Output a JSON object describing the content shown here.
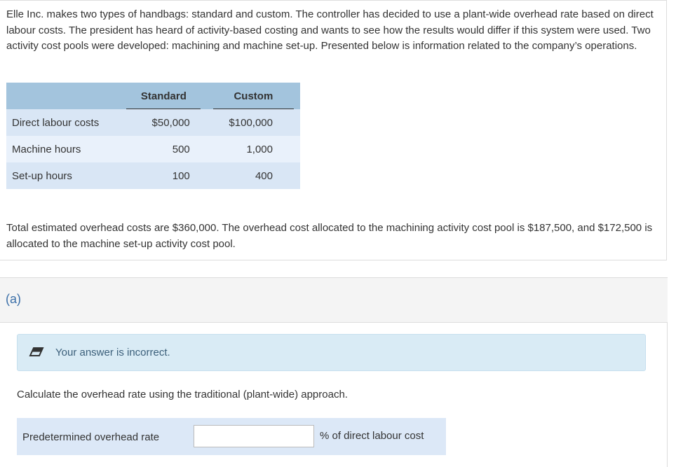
{
  "problem": {
    "intro": "Elle Inc. makes two types of handbags: standard and custom. The controller has decided to use a plant-wide overhead rate based on direct labour costs. The president has heard of activity-based costing and wants to see how the results would differ if this system were used. Two activity cost pools were developed: machining and machine set-up. Presented below is information related to the company’s operations.",
    "table": {
      "headers": [
        "",
        "Standard",
        "Custom"
      ],
      "rows": [
        {
          "label": "Direct labour costs",
          "standard": "$50,000",
          "custom": "$100,000"
        },
        {
          "label": "Machine hours",
          "standard": "500",
          "custom": "1,000"
        },
        {
          "label": "Set-up hours",
          "standard": "100",
          "custom": "400"
        }
      ]
    },
    "outro": "Total estimated overhead costs are $360,000. The overhead cost allocated to the machining activity cost pool is $187,500, and $172,500 is allocated to the machine set-up activity cost pool."
  },
  "part": {
    "label": "(a)",
    "feedback": {
      "icon": "eraser-icon",
      "text": "Your answer is incorrect."
    },
    "question": "Calculate the overhead rate using the traditional (plant-wide) approach.",
    "answer": {
      "label": "Predetermined overhead rate",
      "value": "",
      "unit": "% of direct labour cost"
    }
  }
}
